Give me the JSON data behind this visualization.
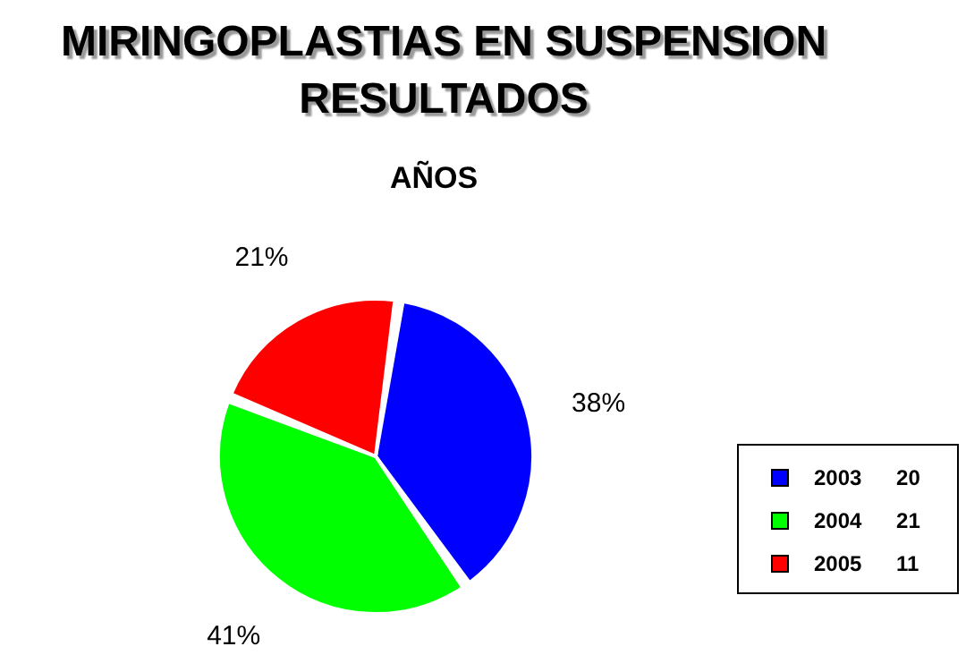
{
  "chart_data": {
    "type": "pie",
    "title": "MIRINGOPLASTIAS EN SUSPENSION RESULTADOS",
    "subtitle": "AÑOS",
    "categories": [
      "2003 20",
      "2004 21",
      "2005 11"
    ],
    "values": [
      38,
      41,
      21
    ],
    "colors": [
      "#0000ff",
      "#00ff00",
      "#ff0000"
    ],
    "value_labels": [
      "38%",
      "41%",
      "21%"
    ],
    "legend": "right"
  }
}
